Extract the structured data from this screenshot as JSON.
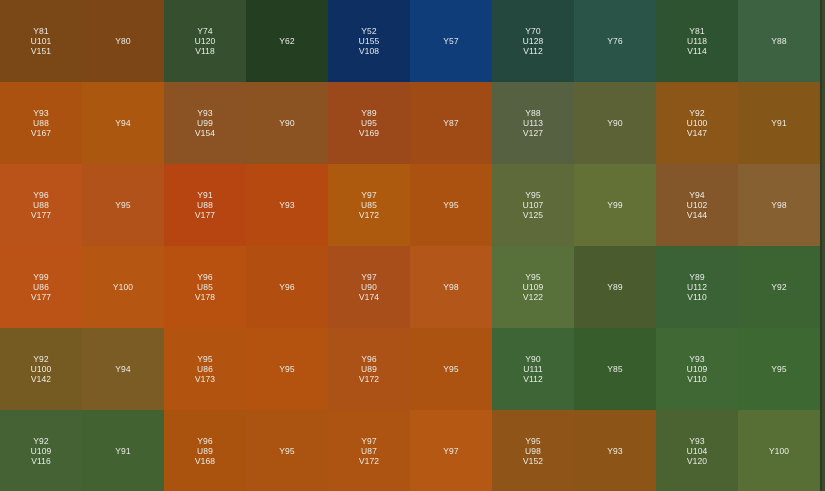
{
  "grid": {
    "cols": 10,
    "rows": 6,
    "cells": [
      {
        "lines": [
          "Y81",
          "U101",
          "V151"
        ],
        "color": "#7a4716"
      },
      {
        "lines": [
          "Y80"
        ],
        "color": "#7d4616"
      },
      {
        "lines": [
          "Y74",
          "U120",
          "V118"
        ],
        "color": "#354f2f"
      },
      {
        "lines": [
          "Y62"
        ],
        "color": "#243e22"
      },
      {
        "lines": [
          "Y52",
          "U155",
          "V108"
        ],
        "color": "#0e2f62"
      },
      {
        "lines": [
          "Y57"
        ],
        "color": "#0f3d7a"
      },
      {
        "lines": [
          "Y70",
          "U128",
          "V112"
        ],
        "color": "#24473e"
      },
      {
        "lines": [
          "Y76"
        ],
        "color": "#2a5448"
      },
      {
        "lines": [
          "Y81",
          "U118",
          "V114"
        ],
        "color": "#2e5330"
      },
      {
        "lines": [
          "Y88"
        ],
        "color": "#3d6241"
      },
      {
        "lines": [
          "Y93",
          "U88",
          "V167"
        ],
        "color": "#ab5210"
      },
      {
        "lines": [
          "Y94"
        ],
        "color": "#ac5710"
      },
      {
        "lines": [
          "Y93",
          "U99",
          "V154"
        ],
        "color": "#8b5323"
      },
      {
        "lines": [
          "Y90"
        ],
        "color": "#8b5222"
      },
      {
        "lines": [
          "Y89",
          "U95",
          "V169"
        ],
        "color": "#9b481a"
      },
      {
        "lines": [
          "Y87"
        ],
        "color": "#a04a16"
      },
      {
        "lines": [
          "Y88",
          "U113",
          "V127"
        ],
        "color": "#566142"
      },
      {
        "lines": [
          "Y90"
        ],
        "color": "#5c6236"
      },
      {
        "lines": [
          "Y92",
          "U100",
          "V147"
        ],
        "color": "#8c5619"
      },
      {
        "lines": [
          "Y91"
        ],
        "color": "#845618"
      },
      {
        "lines": [
          "Y96",
          "U88",
          "V177"
        ],
        "color": "#b9531a"
      },
      {
        "lines": [
          "Y95"
        ],
        "color": "#b2521b"
      },
      {
        "lines": [
          "Y91",
          "U88",
          "V177"
        ],
        "color": "#b64512"
      },
      {
        "lines": [
          "Y93"
        ],
        "color": "#b5490f"
      },
      {
        "lines": [
          "Y97",
          "U85",
          "V172"
        ],
        "color": "#ae5a0e"
      },
      {
        "lines": [
          "Y95"
        ],
        "color": "#ac5210"
      },
      {
        "lines": [
          "Y95",
          "U107",
          "V125"
        ],
        "color": "#5e6a3a"
      },
      {
        "lines": [
          "Y99"
        ],
        "color": "#637036"
      },
      {
        "lines": [
          "Y94",
          "U102",
          "V144"
        ],
        "color": "#84572a"
      },
      {
        "lines": [
          "Y98"
        ],
        "color": "#876032"
      },
      {
        "lines": [
          "Y99",
          "U86",
          "V177"
        ],
        "color": "#bc5316"
      },
      {
        "lines": [
          "Y100"
        ],
        "color": "#b65613"
      },
      {
        "lines": [
          "Y96",
          "U85",
          "V178"
        ],
        "color": "#b8510f"
      },
      {
        "lines": [
          "Y96"
        ],
        "color": "#b24f10"
      },
      {
        "lines": [
          "Y97",
          "U90",
          "V174"
        ],
        "color": "#a84e1a"
      },
      {
        "lines": [
          "Y98"
        ],
        "color": "#b2561a"
      },
      {
        "lines": [
          "Y95",
          "U109",
          "V122"
        ],
        "color": "#587039"
      },
      {
        "lines": [
          "Y89"
        ],
        "color": "#4a5b2d"
      },
      {
        "lines": [
          "Y89",
          "U112",
          "V110"
        ],
        "color": "#3b6136"
      },
      {
        "lines": [
          "Y92"
        ],
        "color": "#3b6432"
      },
      {
        "lines": [
          "Y92",
          "U100",
          "V142"
        ],
        "color": "#755a21"
      },
      {
        "lines": [
          "Y94"
        ],
        "color": "#7a5c24"
      },
      {
        "lines": [
          "Y95",
          "U86",
          "V173"
        ],
        "color": "#b2530f"
      },
      {
        "lines": [
          "Y95"
        ],
        "color": "#b45210"
      },
      {
        "lines": [
          "Y96",
          "U89",
          "V172"
        ],
        "color": "#ad5216"
      },
      {
        "lines": [
          "Y95"
        ],
        "color": "#ac5312"
      },
      {
        "lines": [
          "Y90",
          "U111",
          "V112"
        ],
        "color": "#3d6535"
      },
      {
        "lines": [
          "Y85"
        ],
        "color": "#375d2d"
      },
      {
        "lines": [
          "Y93",
          "U109",
          "V110"
        ],
        "color": "#3f6835"
      },
      {
        "lines": [
          "Y95"
        ],
        "color": "#3e6832"
      },
      {
        "lines": [
          "Y92",
          "U109",
          "V116"
        ],
        "color": "#456235"
      },
      {
        "lines": [
          "Y91"
        ],
        "color": "#436231"
      },
      {
        "lines": [
          "Y96",
          "U89",
          "V168"
        ],
        "color": "#a9530f"
      },
      {
        "lines": [
          "Y95"
        ],
        "color": "#ab5411"
      },
      {
        "lines": [
          "Y97",
          "U87",
          "V172"
        ],
        "color": "#ae5412"
      },
      {
        "lines": [
          "Y97"
        ],
        "color": "#b55813"
      },
      {
        "lines": [
          "Y95",
          "U98",
          "V152"
        ],
        "color": "#8f5418"
      },
      {
        "lines": [
          "Y93"
        ],
        "color": "#8c5417"
      },
      {
        "lines": [
          "Y93",
          "U104",
          "V120"
        ],
        "color": "#4b6330"
      },
      {
        "lines": [
          "Y100"
        ],
        "color": "#576f35"
      }
    ]
  }
}
